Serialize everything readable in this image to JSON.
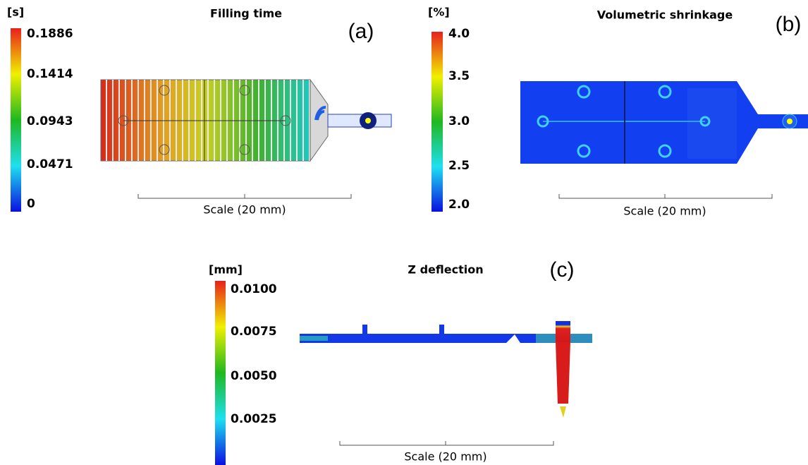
{
  "panels": [
    {
      "label": "(a)",
      "title": "Filling time",
      "unit": "[s]",
      "ticks": [
        "0.1886",
        "0.1414",
        "0.0943",
        "0.0471",
        "0"
      ],
      "scale": "Scale (20 mm)"
    },
    {
      "label": "(b)",
      "title": "Volumetric shrinkage",
      "unit": "[%]",
      "ticks": [
        "4.0",
        "3.5",
        "3.0",
        "2.5",
        "2.0"
      ],
      "scale": "Scale (20 mm)"
    },
    {
      "label": "(c)",
      "title": "Z deflection",
      "unit": "[mm]",
      "ticks": [
        "0.0100",
        "0.0075",
        "0.0050",
        "0.0025"
      ],
      "scale": "Scale (20 mm)"
    }
  ]
}
